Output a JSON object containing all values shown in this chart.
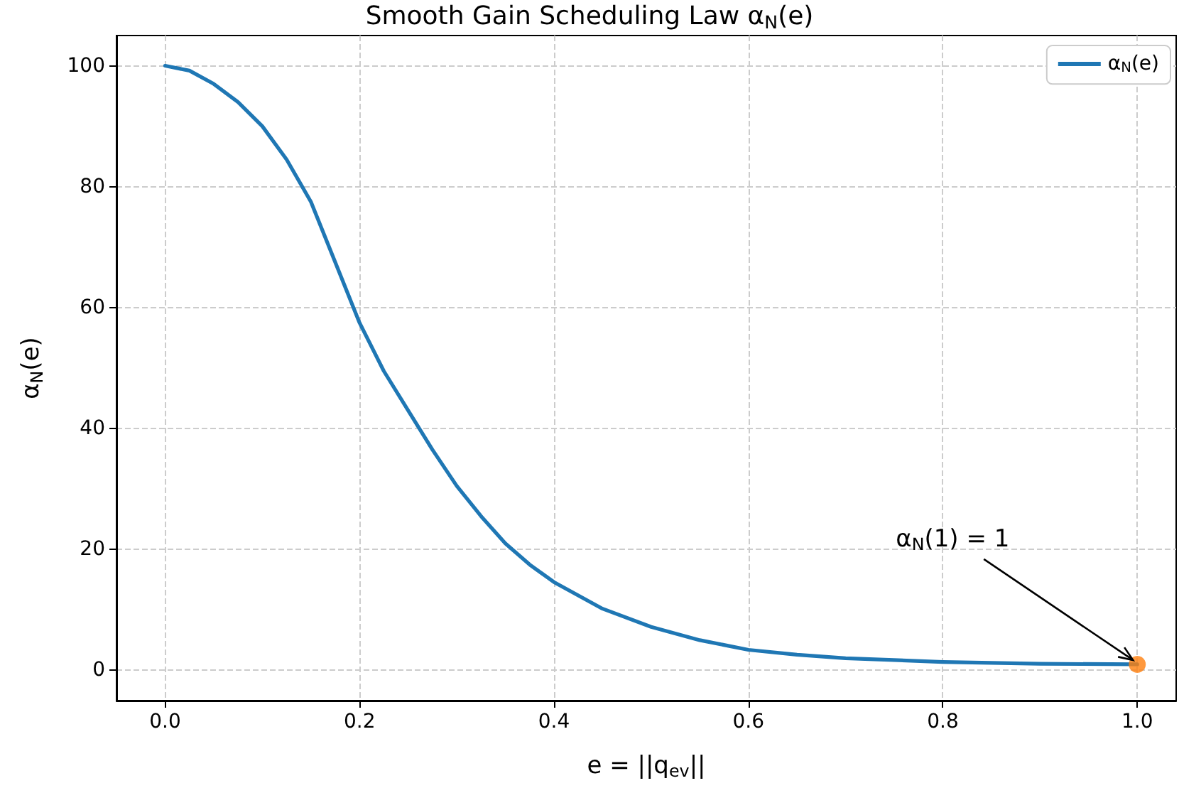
{
  "chart_data": {
    "type": "line",
    "title": "Smooth Gain Scheduling Law α$_{N}$(e)",
    "xlabel": "e = ||q$_{ev}$||",
    "ylabel": "α$_{N}$(e)",
    "x": [
      0,
      0.025,
      0.05,
      0.075,
      0.1,
      0.125,
      0.15,
      0.175,
      0.2,
      0.225,
      0.25,
      0.275,
      0.3,
      0.325,
      0.35,
      0.375,
      0.4,
      0.45,
      0.5,
      0.55,
      0.6,
      0.65,
      0.7,
      0.8,
      0.9,
      1.0
    ],
    "series": [
      {
        "name": "α$_{N}$(e)",
        "color": "#1f77b4",
        "values": [
          100,
          99.2,
          97,
          94,
          90,
          84.5,
          77.5,
          67.5,
          57.5,
          49.5,
          43,
          36.5,
          30.5,
          25.5,
          21,
          17.5,
          14.6,
          10.2,
          7.2,
          5,
          3.4,
          2.6,
          2,
          1.4,
          1.1,
          1
        ]
      },
      {
        "type": "scatter",
        "color": "#ff7f0e",
        "x": [
          1.0
        ],
        "values": [
          1
        ],
        "marker": "circle"
      }
    ],
    "annotations": [
      {
        "text": "α$_{N}$(1) = 1",
        "x": 1.0,
        "y": 1
      }
    ],
    "xlim": [
      -0.05,
      1.04
    ],
    "xticks": [
      {
        "value": 0,
        "label": "0.0"
      },
      0.2,
      0.4,
      0.6,
      0.8,
      {
        "value": 1,
        "label": "1.0"
      }
    ],
    "ylim": [
      -5,
      105
    ],
    "yticks": [
      0,
      20,
      40,
      60,
      80,
      100
    ],
    "grid": true,
    "legend": "top right",
    "marker": "none",
    "line_style": "solid"
  }
}
